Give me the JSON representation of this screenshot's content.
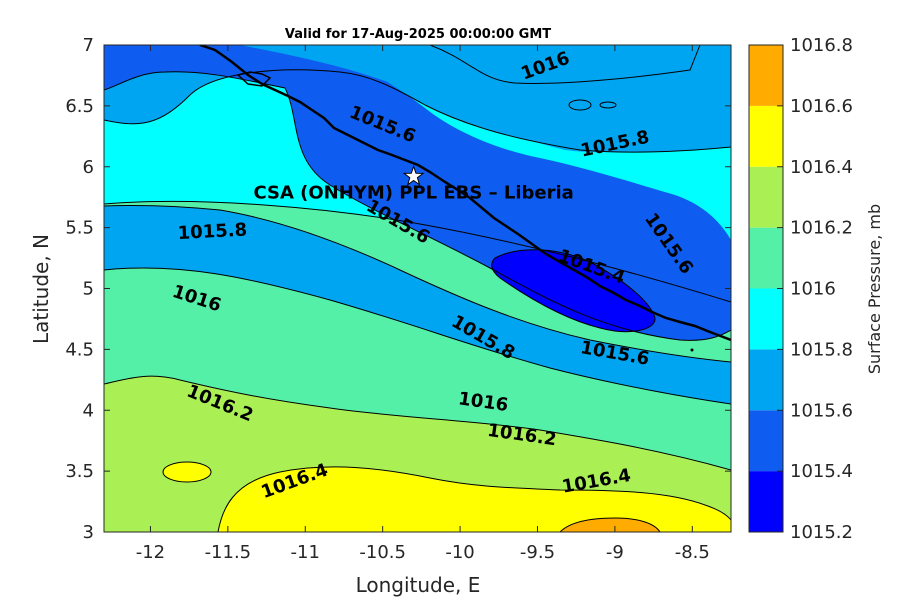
{
  "chart_data": {
    "type": "contour",
    "title": "Valid for 17-Aug-2025 00:00:00 GMT",
    "xlabel": "Longitude, E",
    "ylabel": "Latitude, N",
    "colorbar_label": "Surface Pressure, mb",
    "xlim": [
      -12.3,
      -8.25
    ],
    "ylim": [
      3,
      7
    ],
    "xticks": [
      -12,
      -11.5,
      -11,
      -10.5,
      -10,
      -9.5,
      -9,
      -8.5
    ],
    "xtick_labels": [
      "-12",
      "-11.5",
      "-11",
      "-10.5",
      "-10",
      "-9.5",
      "-9",
      "-8.5"
    ],
    "yticks": [
      3,
      3.5,
      4,
      4.5,
      5,
      5.5,
      6,
      6.5,
      7
    ],
    "ytick_labels": [
      "3",
      "3.5",
      "4",
      "4.5",
      "5",
      "5.5",
      "6",
      "6.5",
      "7"
    ],
    "colorbar": {
      "ticks": [
        1015.2,
        1015.4,
        1015.6,
        1015.8,
        1016,
        1016.2,
        1016.4,
        1016.6,
        1016.8
      ],
      "tick_labels": [
        "1015.2",
        "1015.4",
        "1015.6",
        "1015.8",
        "1016",
        "1016.2",
        "1016.4",
        "1016.6",
        "1016.8"
      ],
      "colors": [
        "#0000ff",
        "#0f5cf0",
        "#00a5f2",
        "#00ffff",
        "#55f0a8",
        "#aaf055",
        "#ffff00",
        "#ffab00",
        "#ff5500"
      ]
    },
    "contour_labels": [
      {
        "text": "1016",
        "lon": -9.45,
        "lat": 6.83,
        "angle": -20
      },
      {
        "text": "1015.6",
        "lon": -10.5,
        "lat": 6.35,
        "angle": 22
      },
      {
        "text": "1015.8",
        "lon": -9.0,
        "lat": 6.19,
        "angle": -12
      },
      {
        "text": "1015.8",
        "lon": -11.6,
        "lat": 5.47,
        "angle": -3
      },
      {
        "text": "1015.6",
        "lon": -10.4,
        "lat": 5.55,
        "angle": 30
      },
      {
        "text": "1015.6",
        "lon": -8.65,
        "lat": 5.37,
        "angle": 55
      },
      {
        "text": "1015.4",
        "lon": -9.15,
        "lat": 5.18,
        "angle": 20
      },
      {
        "text": "1016",
        "lon": -11.7,
        "lat": 4.92,
        "angle": 18
      },
      {
        "text": "1015.8",
        "lon": -9.85,
        "lat": 4.6,
        "angle": 30
      },
      {
        "text": "1015.6",
        "lon": -9.0,
        "lat": 4.47,
        "angle": 10
      },
      {
        "text": "1016.2",
        "lon": -11.55,
        "lat": 4.06,
        "angle": 22
      },
      {
        "text": "1016",
        "lon": -9.85,
        "lat": 4.07,
        "angle": 8
      },
      {
        "text": "1016.2",
        "lon": -9.6,
        "lat": 3.8,
        "angle": 8
      },
      {
        "text": "1016.4",
        "lon": -11.07,
        "lat": 3.42,
        "angle": -20
      },
      {
        "text": "1016.4",
        "lon": -9.12,
        "lat": 3.42,
        "angle": -10
      }
    ],
    "site": {
      "name": "CSA (ONHYM) PPL EBS  – Liberia",
      "lon": -10.3,
      "lat": 5.92
    }
  }
}
